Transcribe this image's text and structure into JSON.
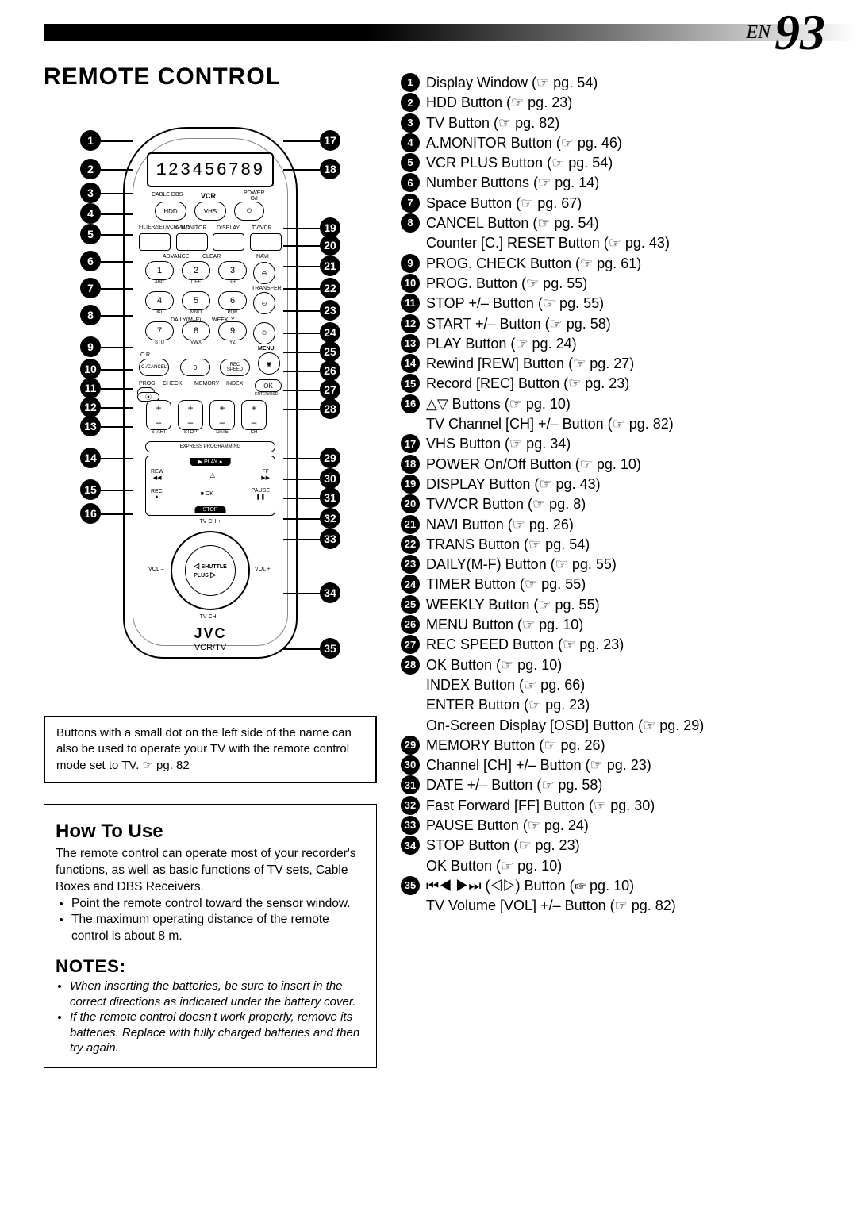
{
  "header": {
    "en": "EN",
    "page_number": "93"
  },
  "title": "REMOTE CONTROL",
  "remote": {
    "display_digits": "123456789",
    "brand": "JVC",
    "mode_label": "VCR/TV",
    "top_ovals": {
      "hdd": "HDD",
      "vhs": "VHS",
      "power": ""
    },
    "top_tiny": {
      "cable": "CABLE DBS",
      "vcr": "VCR",
      "power": "POWER\nO/I"
    },
    "row4_labels": {
      "l1": "PRG",
      "l2": "A.MONITOR",
      "l3": "DISPLAY",
      "l4": "TV/VCR",
      "preset": "FILTER/SET/VCR PLUS"
    },
    "row_clear": {
      "t1": "ADVANCE",
      "t2": "CLEAR",
      "t3": "NAVI"
    },
    "num_subs": [
      "ABC",
      "DEF",
      "GHI",
      "JKL",
      "MNO",
      "PQR",
      "STU",
      "VWX",
      "YZ"
    ],
    "daily": "DAILY(M–F)",
    "weekly": "WEEKLY",
    "cancel": "C./CANCEL",
    "zero": "0",
    "rec_speed": "REC\nSPEED",
    "timer": "",
    "menu": "MENU",
    "bottom_row": {
      "prog": "PROG.",
      "check": "CHECK",
      "memory": "MEMORY",
      "index": "INDEX",
      "ok": "OK",
      "osd": "ENTER/OSD"
    },
    "pm_labels": [
      "START",
      "STOP",
      "DATE",
      "CH"
    ],
    "express": "EXPRESS PROGRAMMING",
    "play_panel": {
      "play": "PLAY",
      "stop": "STOP",
      "rew": "REW",
      "ff": "FF",
      "rec": "REC",
      "pause": "PAUSE",
      "ok": "OK",
      "tvchp": "TV CH +",
      "tvchm": "TV CH –"
    },
    "shuttle": "SHUTTLE\nPLUS",
    "vol": {
      "minus": "VOL –",
      "plus": "VOL +"
    }
  },
  "callouts_left": [
    "1",
    "2",
    "3",
    "4",
    "5",
    "6",
    "7",
    "8",
    "9",
    "10",
    "11",
    "12",
    "13",
    "14",
    "15",
    "16"
  ],
  "callouts_right": [
    "17",
    "18",
    "19",
    "20",
    "21",
    "22",
    "23",
    "24",
    "25",
    "26",
    "27",
    "28",
    "29",
    "30",
    "31",
    "32",
    "33",
    "34",
    "35"
  ],
  "note_box": "Buttons with a small dot on the left side of the name can also be used to operate your TV with the remote control mode set to TV. ☞ pg. 82",
  "how_to_use": {
    "title": "How To Use",
    "intro": "The remote control can operate most of your recorder's functions, as well as basic functions of TV sets, Cable Boxes and DBS Receivers.",
    "bullets": [
      "Point the remote control toward the sensor window.",
      "The maximum operating distance of the remote control is about 8 m."
    ]
  },
  "notes": {
    "title": "NOTES:",
    "bullets": [
      "When inserting the batteries, be sure to insert in the correct directions as indicated under the battery cover.",
      "If the remote control doesn't work properly, remove its batteries. Replace with fully charged batteries and then try again."
    ]
  },
  "refs": [
    {
      "n": "1",
      "t": "Display Window (☞ pg. 54)"
    },
    {
      "n": "2",
      "t": "HDD Button (☞ pg. 23)"
    },
    {
      "n": "3",
      "t": "TV Button (☞ pg. 82)"
    },
    {
      "n": "4",
      "t": "A.MONITOR Button (☞ pg. 46)"
    },
    {
      "n": "5",
      "t": "VCR PLUS Button (☞ pg. 54)"
    },
    {
      "n": "6",
      "t": "Number Buttons (☞ pg. 14)"
    },
    {
      "n": "7",
      "t": "Space Button (☞ pg. 67)"
    },
    {
      "n": "8",
      "t": "CANCEL Button (☞ pg. 54)"
    },
    {
      "n": "",
      "t": "Counter [C.] RESET Button (☞ pg. 43)"
    },
    {
      "n": "9",
      "t": "PROG. CHECK Button (☞ pg. 61)"
    },
    {
      "n": "10",
      "t": "PROG. Button (☞ pg. 55)"
    },
    {
      "n": "11",
      "t": "STOP +/– Button (☞ pg. 55)"
    },
    {
      "n": "12",
      "t": "START +/– Button (☞ pg. 58)"
    },
    {
      "n": "13",
      "t": "PLAY Button (☞ pg. 24)"
    },
    {
      "n": "14",
      "t": "Rewind [REW] Button (☞ pg. 27)"
    },
    {
      "n": "15",
      "t": "Record [REC] Button (☞ pg. 23)"
    },
    {
      "n": "16",
      "t": "△▽ Buttons (☞ pg. 10)"
    },
    {
      "n": "",
      "t": "TV Channel [CH] +/– Button (☞ pg. 82)"
    },
    {
      "n": "17",
      "t": "VHS Button (☞ pg. 34)"
    },
    {
      "n": "18",
      "t": "POWER On/Off Button (☞ pg. 10)"
    },
    {
      "n": "19",
      "t": "DISPLAY Button (☞ pg. 43)"
    },
    {
      "n": "20",
      "t": "TV/VCR Button (☞ pg. 8)"
    },
    {
      "n": "21",
      "t": "NAVI Button (☞ pg. 26)"
    },
    {
      "n": "22",
      "t": "TRANS Button (☞ pg. 54)"
    },
    {
      "n": "23",
      "t": "DAILY(M-F) Button (☞ pg. 55)"
    },
    {
      "n": "24",
      "t": "TIMER Button (☞ pg. 55)"
    },
    {
      "n": "25",
      "t": "WEEKLY Button (☞ pg. 55)"
    },
    {
      "n": "26",
      "t": "MENU Button (☞ pg. 10)"
    },
    {
      "n": "27",
      "t": "REC SPEED Button (☞ pg. 23)"
    },
    {
      "n": "28",
      "t": "OK Button (☞ pg. 10)"
    },
    {
      "n": "",
      "t": "INDEX Button (☞ pg. 66)"
    },
    {
      "n": "",
      "t": "ENTER Button (☞ pg. 23)"
    },
    {
      "n": "",
      "t": "On-Screen Display [OSD] Button (☞ pg. 29)"
    },
    {
      "n": "29",
      "t": "MEMORY Button (☞ pg. 26)"
    },
    {
      "n": "30",
      "t": "Channel [CH] +/– Button (☞ pg. 23)"
    },
    {
      "n": "31",
      "t": "DATE +/– Button (☞ pg. 58)"
    },
    {
      "n": "32",
      "t": "Fast Forward [FF] Button (☞ pg. 30)"
    },
    {
      "n": "33",
      "t": "PAUSE Button (☞ pg. 24)"
    },
    {
      "n": "34",
      "t": "STOP Button (☞ pg. 23)"
    },
    {
      "n": "",
      "t": "OK Button (☞ pg. 10)"
    },
    {
      "n": "35",
      "t": "⏮◀ ▶⏭ (◁▷) Button (☞ pg. 10)"
    },
    {
      "n": "",
      "t": "TV Volume [VOL] +/– Button (☞ pg. 82)"
    }
  ]
}
